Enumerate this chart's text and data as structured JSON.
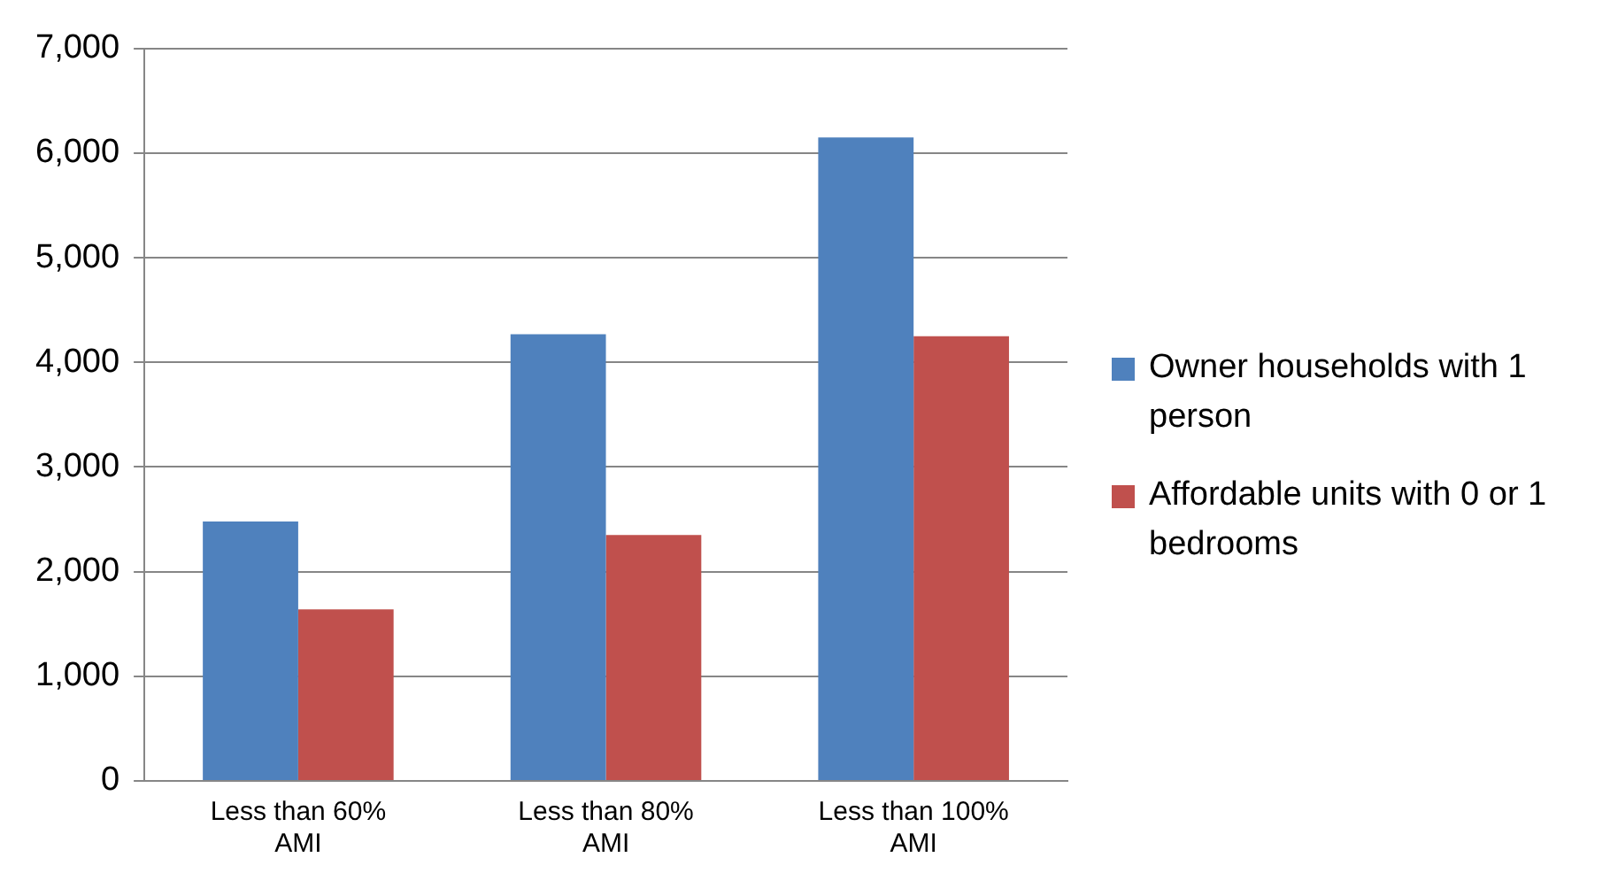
{
  "chart_data": {
    "type": "bar",
    "categories": [
      "Less than 60% AMI",
      "Less than 80% AMI",
      "Less than 100% AMI"
    ],
    "series": [
      {
        "name": "Owner households with 1 person",
        "color": "#4f81bd",
        "values": [
          2480,
          4270,
          6150
        ]
      },
      {
        "name": "Affordable units with 0 or 1 bedrooms",
        "color": "#c0504d",
        "values": [
          1640,
          2350,
          4250
        ]
      }
    ],
    "ylim": [
      0,
      7000
    ],
    "yticks": [
      0,
      {
        "value": 1000,
        "label": "1,000"
      },
      {
        "value": 2000,
        "label": "2,000"
      },
      {
        "value": 3000,
        "label": "3,000"
      },
      {
        "value": 4000,
        "label": "4,000"
      },
      {
        "value": 5000,
        "label": "5,000"
      },
      {
        "value": 6000,
        "label": "6,000"
      },
      {
        "value": 7000,
        "label": "7,000"
      }
    ],
    "grid": "y",
    "legend": "right"
  }
}
